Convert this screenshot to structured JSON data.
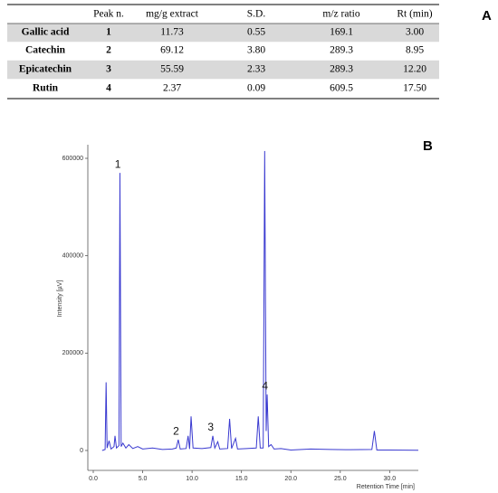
{
  "table": {
    "panel_label": "A",
    "header": [
      "Peak n.",
      "mg/g extract",
      "S.D.",
      "m/z ratio",
      "Rt (min)"
    ],
    "rows": [
      [
        "Gallic acid",
        "1",
        "11.73",
        "0.55",
        "169.1",
        "3.00"
      ],
      [
        "Catechin",
        "2",
        "69.12",
        "3.80",
        "289.3",
        "8.95"
      ],
      [
        "Epicatechin",
        "3",
        "55.59",
        "2.33",
        "289.3",
        "12.20"
      ],
      [
        "Rutin",
        "4",
        "2.37",
        "0.09",
        "609.5",
        "17.50"
      ]
    ]
  },
  "chart_data": {
    "type": "line",
    "panel_label": "B",
    "x_label": "Retention Time [min]",
    "y_label": "Intensity [µV]",
    "color": "#3a3ad0",
    "x": [
      0.9,
      1.2,
      1.3,
      1.4,
      1.6,
      1.8,
      2.1,
      2.2,
      2.35,
      2.6,
      2.7,
      2.82,
      3.0,
      3.3,
      3.6,
      4.0,
      4.5,
      5.0,
      6.0,
      7.0,
      8.0,
      8.4,
      8.6,
      8.8,
      9.4,
      9.6,
      9.75,
      9.9,
      10.1,
      11.0,
      11.9,
      12.1,
      12.3,
      12.6,
      12.8,
      13.6,
      13.8,
      14.0,
      14.4,
      14.6,
      15.5,
      16.5,
      16.7,
      16.9,
      17.2,
      17.35,
      17.5,
      17.6,
      17.75,
      18.0,
      18.3,
      19.0,
      20.0,
      22.0,
      24.0,
      26.0,
      28.2,
      28.45,
      28.7,
      30.0,
      32.9
    ],
    "values": [
      0,
      2000,
      140000,
      5000,
      20000,
      3000,
      8000,
      30000,
      5000,
      10000,
      570000,
      8000,
      15000,
      5000,
      12000,
      4000,
      8000,
      3000,
      5000,
      2000,
      3000,
      5000,
      22000,
      3000,
      4000,
      30000,
      3000,
      70000,
      5000,
      4000,
      6000,
      30000,
      5000,
      18000,
      3000,
      4000,
      65000,
      4000,
      25000,
      3000,
      4000,
      5000,
      70000,
      5000,
      5000,
      615000,
      40000,
      115000,
      8000,
      12000,
      3000,
      4000,
      1000,
      3000,
      2000,
      1500,
      2000,
      40000,
      1000,
      1000,
      500
    ],
    "annotations": [
      {
        "text": "1",
        "x": 2.7,
        "y": 570000
      },
      {
        "text": "2",
        "x": 8.6,
        "y": 22000
      },
      {
        "text": "3",
        "x": 12.1,
        "y": 30000
      },
      {
        "text": "4",
        "x": 17.6,
        "y": 115000
      }
    ],
    "xlim": [
      -0.55,
      32.9
    ],
    "ylim": [
      -40900,
      627900
    ],
    "xticks": [
      {
        "value": 0,
        "label": "0.0"
      },
      {
        "value": 5,
        "label": "5.0"
      },
      {
        "value": 10,
        "label": "10.0"
      },
      {
        "value": 15,
        "label": "15.0"
      },
      {
        "value": 20,
        "label": "20.0"
      },
      {
        "value": 25,
        "label": "25.0"
      },
      {
        "value": 30,
        "label": "30.0"
      }
    ],
    "yticks": [
      0,
      200000,
      400000,
      600000
    ]
  }
}
